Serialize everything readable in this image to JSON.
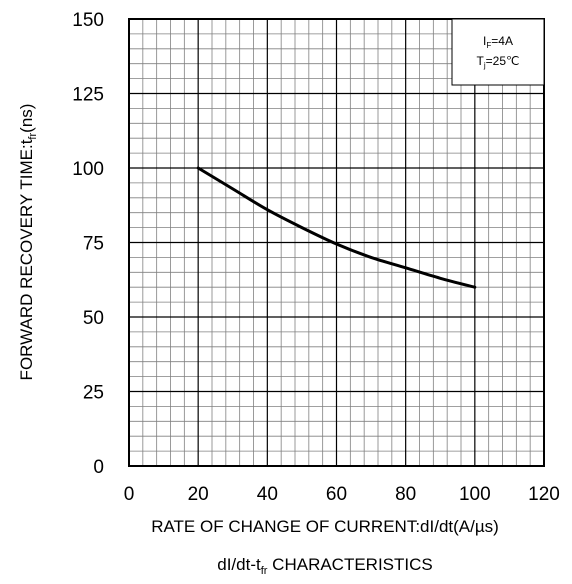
{
  "chart_data": {
    "type": "line",
    "title": "dI/dt-t",
    "title_subscript": "fr",
    "title_suffix": " CHARACTERISTICS",
    "xlabel": "RATE OF CHANGE OF CURRENT:dI/dt(A/µs)",
    "ylabel_prefix": "FORWARD RECOVERY TIME:t",
    "ylabel_subscript": "fr",
    "ylabel_suffix": "(ns)",
    "xlim": [
      0,
      120
    ],
    "ylim": [
      0,
      150
    ],
    "x_ticks": [
      0,
      20,
      40,
      60,
      80,
      100,
      120
    ],
    "y_ticks": [
      0,
      25,
      50,
      75,
      100,
      125,
      150
    ],
    "x_tick_labels": [
      "0",
      "20",
      "40",
      "60",
      "80",
      "100",
      "120"
    ],
    "y_tick_labels": [
      "0",
      "25",
      "50",
      "75",
      "100",
      "125",
      "150"
    ],
    "grid": true,
    "x": [
      20,
      30,
      40,
      50,
      60,
      70,
      80,
      90,
      100
    ],
    "series": [
      {
        "values": [
          100,
          93,
          86,
          80,
          74.5,
          70,
          66.5,
          63,
          60
        ]
      }
    ],
    "legend": {
      "position": "top-right",
      "line1_prefix": "I",
      "line1_subscript": "F",
      "line1_suffix": "=4A",
      "line2_prefix": "T",
      "line2_subscript": "j",
      "line2_suffix": "=25℃"
    },
    "colors": {
      "line": "#000000",
      "grid": "#808080",
      "major_grid": "#000000"
    }
  }
}
